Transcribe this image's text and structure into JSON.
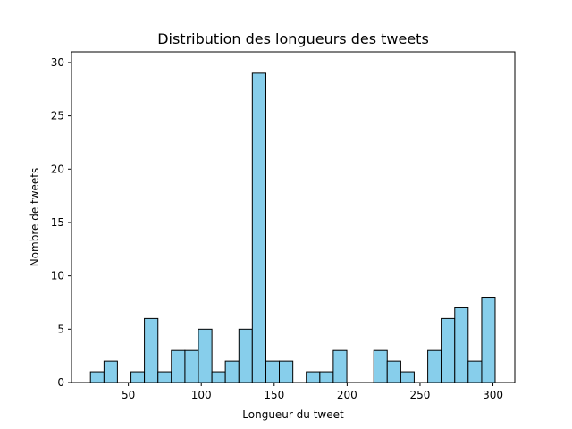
{
  "chart_data": {
    "type": "bar",
    "title": "Distribution des longueurs des tweets",
    "xlabel": "Longueur du tweet",
    "ylabel": "Nombre de tweets",
    "xlim": [
      11,
      315
    ],
    "ylim": [
      0,
      31
    ],
    "xticks": [
      50,
      100,
      150,
      200,
      250,
      300
    ],
    "yticks": [
      0,
      5,
      10,
      15,
      20,
      25,
      30
    ],
    "bar_color": "#87ceeb",
    "edge_color": "#000000",
    "grid": false,
    "legend": "none",
    "bins": [
      {
        "start": 24.0,
        "end": 33.3,
        "count": 1
      },
      {
        "start": 33.3,
        "end": 42.5,
        "count": 2
      },
      {
        "start": 42.5,
        "end": 51.8,
        "count": 0
      },
      {
        "start": 51.8,
        "end": 61.0,
        "count": 1
      },
      {
        "start": 61.0,
        "end": 70.3,
        "count": 6
      },
      {
        "start": 70.3,
        "end": 79.5,
        "count": 1
      },
      {
        "start": 79.5,
        "end": 88.8,
        "count": 3
      },
      {
        "start": 88.8,
        "end": 98.0,
        "count": 3
      },
      {
        "start": 98.0,
        "end": 107.3,
        "count": 5
      },
      {
        "start": 107.3,
        "end": 116.5,
        "count": 1
      },
      {
        "start": 116.5,
        "end": 125.8,
        "count": 2
      },
      {
        "start": 125.8,
        "end": 135.0,
        "count": 5
      },
      {
        "start": 135.0,
        "end": 144.3,
        "count": 29
      },
      {
        "start": 144.3,
        "end": 153.5,
        "count": 2
      },
      {
        "start": 153.5,
        "end": 162.8,
        "count": 2
      },
      {
        "start": 162.8,
        "end": 172.0,
        "count": 0
      },
      {
        "start": 172.0,
        "end": 181.3,
        "count": 1
      },
      {
        "start": 181.3,
        "end": 190.5,
        "count": 1
      },
      {
        "start": 190.5,
        "end": 199.8,
        "count": 3
      },
      {
        "start": 199.8,
        "end": 209.0,
        "count": 0
      },
      {
        "start": 209.0,
        "end": 218.3,
        "count": 0
      },
      {
        "start": 218.3,
        "end": 227.5,
        "count": 3
      },
      {
        "start": 227.5,
        "end": 236.8,
        "count": 2
      },
      {
        "start": 236.8,
        "end": 246.0,
        "count": 1
      },
      {
        "start": 246.0,
        "end": 255.3,
        "count": 0
      },
      {
        "start": 255.3,
        "end": 264.5,
        "count": 3
      },
      {
        "start": 264.5,
        "end": 273.8,
        "count": 6
      },
      {
        "start": 273.8,
        "end": 283.0,
        "count": 7
      },
      {
        "start": 283.0,
        "end": 292.3,
        "count": 2
      },
      {
        "start": 292.3,
        "end": 301.5,
        "count": 8
      }
    ]
  }
}
